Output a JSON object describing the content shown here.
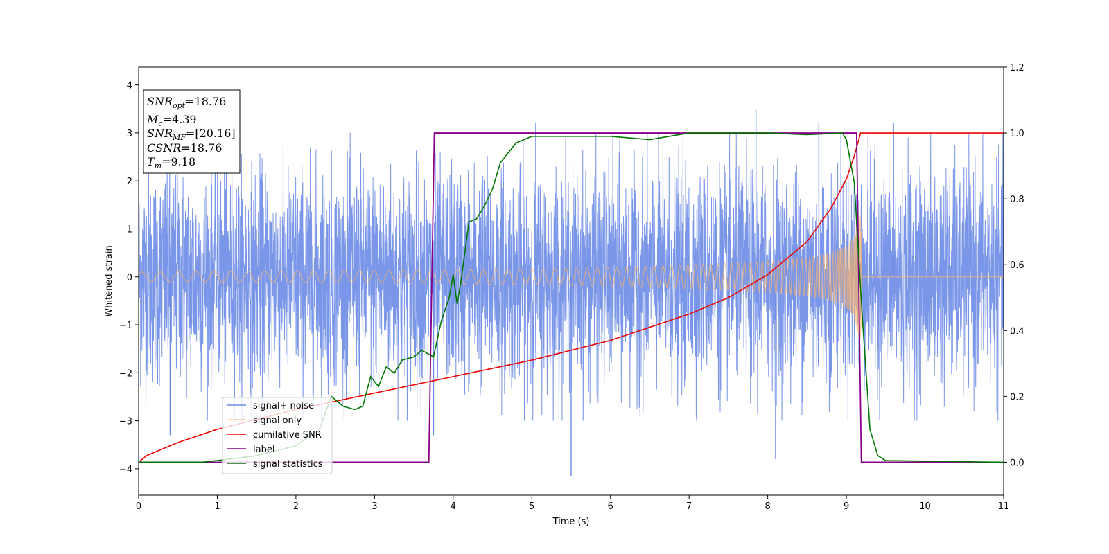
{
  "chart_data": {
    "type": "line",
    "xlabel": "Time (s)",
    "ylabel": "Whitened strain",
    "xlim": [
      0,
      11
    ],
    "ylim": [
      -4.55,
      4.37
    ],
    "y2lim": [
      -0.1,
      1.2
    ],
    "xticks": [
      "0",
      "1",
      "2",
      "3",
      "4",
      "5",
      "6",
      "7",
      "8",
      "9",
      "10",
      "11"
    ],
    "yticks": [
      "−4",
      "−3",
      "−2",
      "−1",
      "0",
      "1",
      "2",
      "3",
      "4"
    ],
    "y2ticks": [
      "0.0",
      "0.2",
      "0.4",
      "0.6",
      "0.8",
      "1.0",
      "1.2"
    ],
    "grid": false,
    "legend_position": "lower-left",
    "info_box": {
      "snr_opt": "=18.76",
      "mc": "=4.39",
      "snr_mf": "=[20.16]",
      "csnr": "=18.76",
      "tm": "=9.18"
    },
    "series": [
      {
        "name": "signal+ noise",
        "color": "#6b8be6",
        "axis": "left",
        "description_values": {
          "noise_band": [
            -1.6,
            1.6
          ],
          "peaks": [
            [
              0.4,
              -3.3
            ],
            [
              3.75,
              -3.3
            ],
            [
              5.05,
              3.2
            ],
            [
              5.5,
              -4.15
            ],
            [
              7.85,
              3.5
            ],
            [
              8.1,
              -3.8
            ],
            [
              8.65,
              3.2
            ],
            [
              9.6,
              3.2
            ]
          ]
        }
      },
      {
        "name": "signal only",
        "color": "#ffb366",
        "axis": "left",
        "envelope": [
          [
            0,
            0.1
          ],
          [
            1,
            0.11
          ],
          [
            2,
            0.12
          ],
          [
            3,
            0.13
          ],
          [
            4,
            0.15
          ],
          [
            5,
            0.17
          ],
          [
            6,
            0.2
          ],
          [
            7,
            0.25
          ],
          [
            8,
            0.33
          ],
          [
            8.5,
            0.4
          ],
          [
            8.8,
            0.5
          ],
          [
            9.0,
            0.65
          ],
          [
            9.1,
            0.85
          ],
          [
            9.18,
            1.5
          ],
          [
            9.2,
            0.0
          ],
          [
            11,
            0.0
          ]
        ]
      },
      {
        "name": "cumilative SNR",
        "color": "#ee0000",
        "axis": "right",
        "points": [
          [
            0,
            0.0
          ],
          [
            0.1,
            0.02
          ],
          [
            0.5,
            0.06
          ],
          [
            1,
            0.1
          ],
          [
            2,
            0.16
          ],
          [
            3,
            0.21
          ],
          [
            4,
            0.26
          ],
          [
            5,
            0.31
          ],
          [
            6,
            0.37
          ],
          [
            7,
            0.45
          ],
          [
            7.5,
            0.5
          ],
          [
            8,
            0.57
          ],
          [
            8.5,
            0.67
          ],
          [
            8.8,
            0.77
          ],
          [
            9.0,
            0.86
          ],
          [
            9.1,
            0.93
          ],
          [
            9.18,
            1.0
          ],
          [
            11,
            1.0
          ]
        ]
      },
      {
        "name": "label",
        "color": "#880088",
        "axis": "right",
        "points": [
          [
            0,
            0.0
          ],
          [
            3.69,
            0.0
          ],
          [
            3.76,
            1.0
          ],
          [
            9.13,
            1.0
          ],
          [
            9.19,
            0.0
          ],
          [
            11,
            0.0
          ]
        ]
      },
      {
        "name": "signal statistics",
        "color": "#007700",
        "axis": "right",
        "points": [
          [
            0,
            0.0
          ],
          [
            0.5,
            0.0
          ],
          [
            0.8,
            0.0
          ],
          [
            1.0,
            0.005
          ],
          [
            1.5,
            0.02
          ],
          [
            2.0,
            0.05
          ],
          [
            2.3,
            0.1
          ],
          [
            2.45,
            0.2
          ],
          [
            2.6,
            0.17
          ],
          [
            2.75,
            0.16
          ],
          [
            2.85,
            0.17
          ],
          [
            2.95,
            0.26
          ],
          [
            3.05,
            0.23
          ],
          [
            3.15,
            0.29
          ],
          [
            3.25,
            0.27
          ],
          [
            3.35,
            0.31
          ],
          [
            3.5,
            0.32
          ],
          [
            3.6,
            0.34
          ],
          [
            3.75,
            0.32
          ],
          [
            3.85,
            0.43
          ],
          [
            3.95,
            0.5
          ],
          [
            4.0,
            0.57
          ],
          [
            4.05,
            0.48
          ],
          [
            4.1,
            0.55
          ],
          [
            4.2,
            0.73
          ],
          [
            4.3,
            0.74
          ],
          [
            4.4,
            0.78
          ],
          [
            4.5,
            0.83
          ],
          [
            4.6,
            0.91
          ],
          [
            4.8,
            0.97
          ],
          [
            5.0,
            0.99
          ],
          [
            5.5,
            0.99
          ],
          [
            6.0,
            0.99
          ],
          [
            6.5,
            0.98
          ],
          [
            7.0,
            1.0
          ],
          [
            7.5,
            1.0
          ],
          [
            8.0,
            1.0
          ],
          [
            8.5,
            0.995
          ],
          [
            8.95,
            1.0
          ],
          [
            9.0,
            0.98
          ],
          [
            9.1,
            0.85
          ],
          [
            9.2,
            0.45
          ],
          [
            9.3,
            0.1
          ],
          [
            9.4,
            0.02
          ],
          [
            9.5,
            0.005
          ],
          [
            11,
            0.0
          ]
        ]
      }
    ]
  }
}
